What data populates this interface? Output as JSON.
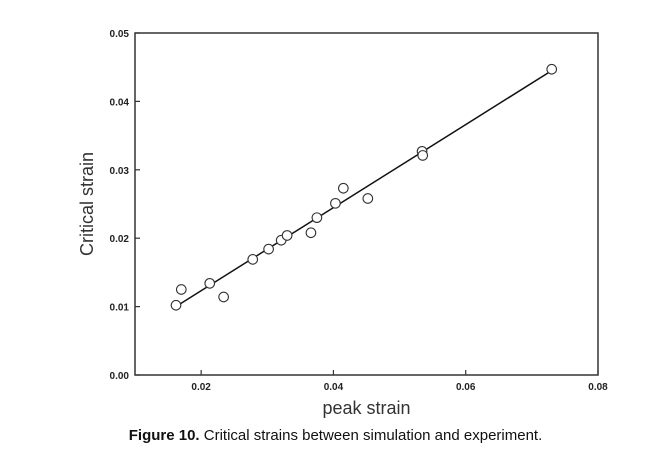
{
  "caption": {
    "lead": "Figure 10.",
    "text": " Critical strains between simulation and experiment."
  },
  "chart_data": {
    "type": "scatter",
    "title": "",
    "xlabel": "peak strain",
    "ylabel": "Critical strain",
    "xlim": [
      0.01,
      0.08
    ],
    "ylim": [
      0.0,
      0.05
    ],
    "x_ticks": [
      0.02,
      0.04,
      0.06,
      0.08
    ],
    "x_tick_labels": [
      "0.02",
      "0.04",
      "0.06",
      "0.08"
    ],
    "y_ticks": [
      0.0,
      0.01,
      0.02,
      0.03,
      0.04,
      0.05
    ],
    "y_tick_labels": [
      "0.00",
      "0.01",
      "0.02",
      "0.03",
      "0.04",
      "0.05"
    ],
    "grid": false,
    "legend": "none",
    "series": [
      {
        "marker": "open-circle",
        "points": [
          [
            0.0162,
            0.0102
          ],
          [
            0.017,
            0.0125
          ],
          [
            0.0213,
            0.0134
          ],
          [
            0.0234,
            0.0114
          ],
          [
            0.0278,
            0.0169
          ],
          [
            0.0302,
            0.0184
          ],
          [
            0.0321,
            0.0197
          ],
          [
            0.033,
            0.0204
          ],
          [
            0.0366,
            0.0208
          ],
          [
            0.0375,
            0.023
          ],
          [
            0.0403,
            0.0251
          ],
          [
            0.0415,
            0.0273
          ],
          [
            0.0452,
            0.0258
          ],
          [
            0.0534,
            0.0327
          ],
          [
            0.0535,
            0.0321
          ],
          [
            0.073,
            0.0447
          ]
        ]
      }
    ],
    "fit_line": {
      "x": [
        0.0165,
        0.073
      ],
      "y": [
        0.0102,
        0.0445
      ]
    },
    "colors": {
      "marker": "#333333",
      "line": "#111111",
      "axes": "#333333"
    }
  }
}
